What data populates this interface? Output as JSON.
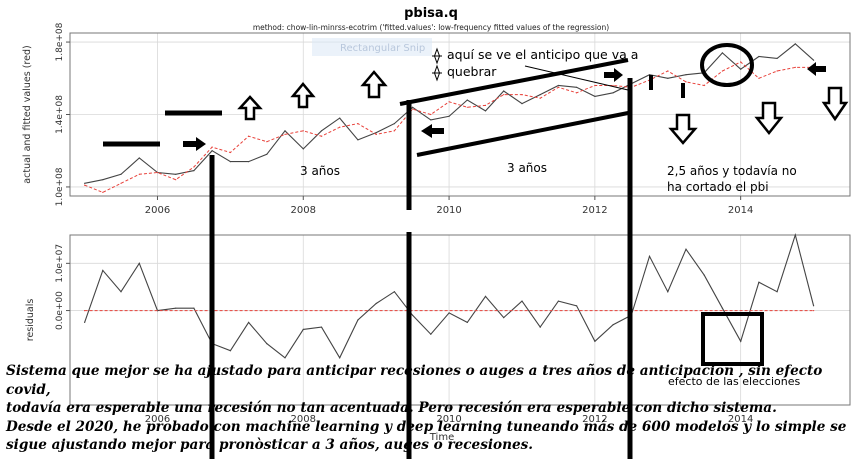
{
  "chart_data": [
    {
      "type": "line",
      "title": "pbisa.q",
      "subtitle": "method: chow-lin-minrss-ecotrim ('fitted.values': low-frequency fitted values of the regression)",
      "ylabel": "actual and fitted values (red)",
      "xlim": [
        2004.8,
        2015.5
      ],
      "ylim": [
        95000000.0,
        185000000.0
      ],
      "y_ticks": [
        100000000.0,
        140000000.0,
        180000000.0
      ],
      "y_tick_labels": [
        "1.0e+08",
        "1.4e+08",
        "1.8e+08"
      ],
      "x_ticks": [
        2006,
        2008,
        2010,
        2012,
        2014
      ],
      "x_tick_labels": [
        "2006",
        "2008",
        "2010",
        "2012",
        "2014"
      ],
      "grid": true,
      "series": [
        {
          "color": "#444444",
          "x": [
            2005.0,
            2005.25,
            2005.5,
            2005.75,
            2006.0,
            2006.25,
            2006.5,
            2006.75,
            2007.0,
            2007.25,
            2007.5,
            2007.75,
            2008.0,
            2008.25,
            2008.5,
            2008.75,
            2009.0,
            2009.25,
            2009.5,
            2009.75,
            2010.0,
            2010.25,
            2010.5,
            2010.75,
            2011.0,
            2011.25,
            2011.5,
            2011.75,
            2012.0,
            2012.25,
            2012.5,
            2012.75,
            2013.0,
            2013.25,
            2013.5,
            2013.75,
            2014.0,
            2014.25,
            2014.5,
            2014.75,
            2015.0
          ],
          "values": [
            102000000.0,
            104000000.0,
            107000000.0,
            116000000.0,
            108000000.0,
            107000000.0,
            109000000.0,
            120000000.0,
            114000000.0,
            114000000.0,
            118000000.0,
            131000000.0,
            121000000.0,
            131000000.0,
            138000000.0,
            126000000.0,
            130000000.0,
            135000000.0,
            144000000.0,
            137000000.0,
            139000000.0,
            148000000.0,
            142000000.0,
            153000000.0,
            146000000.0,
            151000000.0,
            156000000.0,
            155000000.0,
            150000000.0,
            152000000.0,
            157000000.0,
            162000000.0,
            160000000.0,
            162000000.0,
            163000000.0,
            174000000.0,
            165000000.0,
            172000000.0,
            171000000.0,
            179000000.0,
            170000000.0
          ]
        },
        {
          "color": "#e8413a",
          "dashed": true,
          "x": [
            2005.0,
            2005.25,
            2005.5,
            2005.75,
            2006.0,
            2006.25,
            2006.5,
            2006.75,
            2007.0,
            2007.25,
            2007.5,
            2007.75,
            2008.0,
            2008.25,
            2008.5,
            2008.75,
            2009.0,
            2009.25,
            2009.5,
            2009.75,
            2010.0,
            2010.25,
            2010.5,
            2010.75,
            2011.0,
            2011.25,
            2011.5,
            2011.75,
            2012.0,
            2012.25,
            2012.5,
            2012.75,
            2013.0,
            2013.25,
            2013.5,
            2013.75,
            2014.0,
            2014.25,
            2014.5,
            2014.75,
            2015.0
          ],
          "values": [
            101000000.0,
            97000000.0,
            102000000.0,
            107000000.0,
            108000000.0,
            104000000.0,
            111000000.0,
            122000000.0,
            119000000.0,
            128000000.0,
            125000000.0,
            129000000.0,
            131000000.0,
            128000000.0,
            133000000.0,
            135000000.0,
            129000000.0,
            131000000.0,
            143000000.0,
            140000000.0,
            147000000.0,
            144000000.0,
            145000000.0,
            151000000.0,
            151000000.0,
            149000000.0,
            155000000.0,
            152000000.0,
            156000000.0,
            156000000.0,
            155000000.0,
            159000000.0,
            164000000.0,
            158000000.0,
            156000000.0,
            164000000.0,
            169000000.0,
            160000000.0,
            164000000.0,
            166000000.0,
            166000000.0
          ]
        }
      ]
    },
    {
      "type": "line",
      "ylabel": "residuals",
      "xlabel": "Time",
      "xlim": [
        2004.8,
        2015.5
      ],
      "ylim": [
        -20000000.0,
        16000000.0
      ],
      "y_ticks": [
        0,
        10000000.0
      ],
      "y_tick_labels": [
        "0.0e+00",
        "1.0e+07"
      ],
      "x_ticks": [
        2006,
        2008,
        2010,
        2012,
        2014
      ],
      "x_tick_labels": [
        "2006",
        "2008",
        "2010",
        "2012",
        "2014"
      ],
      "grid": true,
      "series": [
        {
          "color": "#444444",
          "x": [
            2005.0,
            2005.25,
            2005.5,
            2005.75,
            2006.0,
            2006.25,
            2006.5,
            2006.75,
            2007.0,
            2007.25,
            2007.5,
            2007.75,
            2008.0,
            2008.25,
            2008.5,
            2008.75,
            2009.0,
            2009.25,
            2009.5,
            2009.75,
            2010.0,
            2010.25,
            2010.5,
            2010.75,
            2011.0,
            2011.25,
            2011.5,
            2011.75,
            2012.0,
            2012.25,
            2012.5,
            2012.75,
            2013.0,
            2013.25,
            2013.5,
            2013.75,
            2014.0,
            2014.25,
            2014.5,
            2014.75,
            2015.0
          ],
          "values": [
            -2500000.0,
            8500000.0,
            4000000.0,
            10000000.0,
            0,
            500000.0,
            500000.0,
            -7000000.0,
            -8500000.0,
            -2500000.0,
            -7000000.0,
            -10000000.0,
            -4000000.0,
            -3500000.0,
            -10000000.0,
            -2000000.0,
            1500000.0,
            4000000.0,
            -1000000.0,
            -5000000.0,
            -500000.0,
            -2500000.0,
            3000000.0,
            -1500000.0,
            2000000.0,
            -3500000.0,
            2000000.0,
            1000000.0,
            -6500000.0,
            -3000000.0,
            -1000000.0,
            11500000.0,
            4000000.0,
            13000000.0,
            7500000.0,
            500000.0,
            -6500000.0,
            6000000.0,
            4000000.0,
            16000000.0,
            1000000.0
          ]
        },
        {
          "color": "#e8413a",
          "dashed": true,
          "x": [
            2005.0,
            2015.0
          ],
          "values": [
            0,
            0
          ]
        }
      ]
    }
  ],
  "annotations": {
    "rect_label": "Rectangular Snip",
    "note_anticipo": "aquí se ve el anticipo que va a\nquebrar",
    "anios_1": "3 años",
    "anios_2": "3 años",
    "anios_3": "2,5 años y todavía no\nha cortado el pbi",
    "efecto": "efecto de las elecciones"
  },
  "caption": "Sistema que mejor se ha ajustado para anticipar recesiones o auges a tres años de anticipacion , sin efecto covid,\ntodavía era esperable una recesión no tan acentuada.  Pero recesión era esperable con dicho sistema.\nDesde el 2020, he probado con machine learning y deep learning tuneando más de 600 modelos y lo simple se\nsigue ajustando mejor para pronòsticar a 3 años, auges o recesiones."
}
